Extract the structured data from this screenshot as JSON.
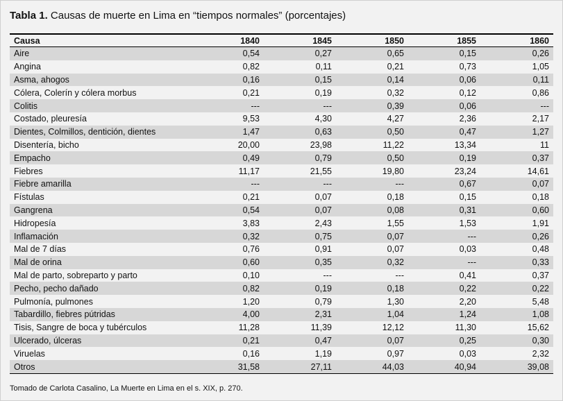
{
  "title": {
    "label": "Tabla 1.",
    "text": " Causas de muerte en Lima en “tiempos normales” (porcentajes)"
  },
  "table": {
    "headers": [
      "Causa",
      "1840",
      "1845",
      "1850",
      "1855",
      "1860"
    ],
    "rows": [
      [
        "Aire",
        "0,54",
        "0,27",
        "0,65",
        "0,15",
        "0,26"
      ],
      [
        "Angina",
        "0,82",
        "0,11",
        "0,21",
        "0,73",
        "1,05"
      ],
      [
        "Asma, ahogos",
        "0,16",
        "0,15",
        "0,14",
        "0,06",
        "0,11"
      ],
      [
        "Cólera, Colerín y cólera morbus",
        "0,21",
        "0,19",
        "0,32",
        "0,12",
        "0,86"
      ],
      [
        "Colitis",
        "---",
        "---",
        "0,39",
        "0,06",
        "---"
      ],
      [
        "Costado, pleuresía",
        "9,53",
        "4,30",
        "4,27",
        "2,36",
        "2,17"
      ],
      [
        "Dientes, Colmillos, dentición, dientes",
        "1,47",
        "0,63",
        "0,50",
        "0,47",
        "1,27"
      ],
      [
        "Disentería, bicho",
        "20,00",
        "23,98",
        "11,22",
        "13,34",
        "11"
      ],
      [
        "Empacho",
        "0,49",
        "0,79",
        "0,50",
        "0,19",
        "0,37"
      ],
      [
        "Fiebres",
        "11,17",
        "21,55",
        "19,80",
        "23,24",
        "14,61"
      ],
      [
        "Fiebre amarilla",
        "---",
        "---",
        "---",
        "0,67",
        "0,07"
      ],
      [
        "Fístulas",
        "0,21",
        "0,07",
        "0,18",
        "0,15",
        "0,18"
      ],
      [
        "Gangrena",
        "0,54",
        "0,07",
        "0,08",
        "0,31",
        "0,60"
      ],
      [
        "Hidropesía",
        "3,83",
        "2,43",
        "1,55",
        "1,53",
        "1,91"
      ],
      [
        "Inflamación",
        "0,32",
        "0,75",
        "0,07",
        "---",
        "0,26"
      ],
      [
        "Mal de 7 días",
        "0,76",
        "0,91",
        "0,07",
        "0,03",
        "0,48"
      ],
      [
        "Mal de orina",
        "0,60",
        "0,35",
        "0,32",
        "---",
        "0,33"
      ],
      [
        "Mal de parto, sobreparto y parto",
        "0,10",
        "---",
        "---",
        "0,41",
        "0,37"
      ],
      [
        "Pecho, pecho dañado",
        "0,82",
        "0,19",
        "0,18",
        "0,22",
        "0,22"
      ],
      [
        "Pulmonía, pulmones",
        "1,20",
        "0,79",
        "1,30",
        "2,20",
        "5,48"
      ],
      [
        "Tabardillo, fiebres pútridas",
        "4,00",
        "2,31",
        "1,04",
        "1,24",
        "1,08"
      ],
      [
        "Tisis, Sangre de boca y tubérculos",
        "11,28",
        "11,39",
        "12,12",
        "11,30",
        "15,62"
      ],
      [
        "Ulcerado, úlceras",
        "0,21",
        "0,47",
        "0,07",
        "0,25",
        "0,30"
      ],
      [
        "Viruelas",
        "0,16",
        "1,19",
        "0,97",
        "0,03",
        "2,32"
      ],
      [
        "Otros",
        "31,58",
        "27,11",
        "44,03",
        "40,94",
        "39,08"
      ]
    ]
  },
  "source": "Tomado de Carlota Casalino, La Muerte en Lima en el s. XIX, p. 270."
}
